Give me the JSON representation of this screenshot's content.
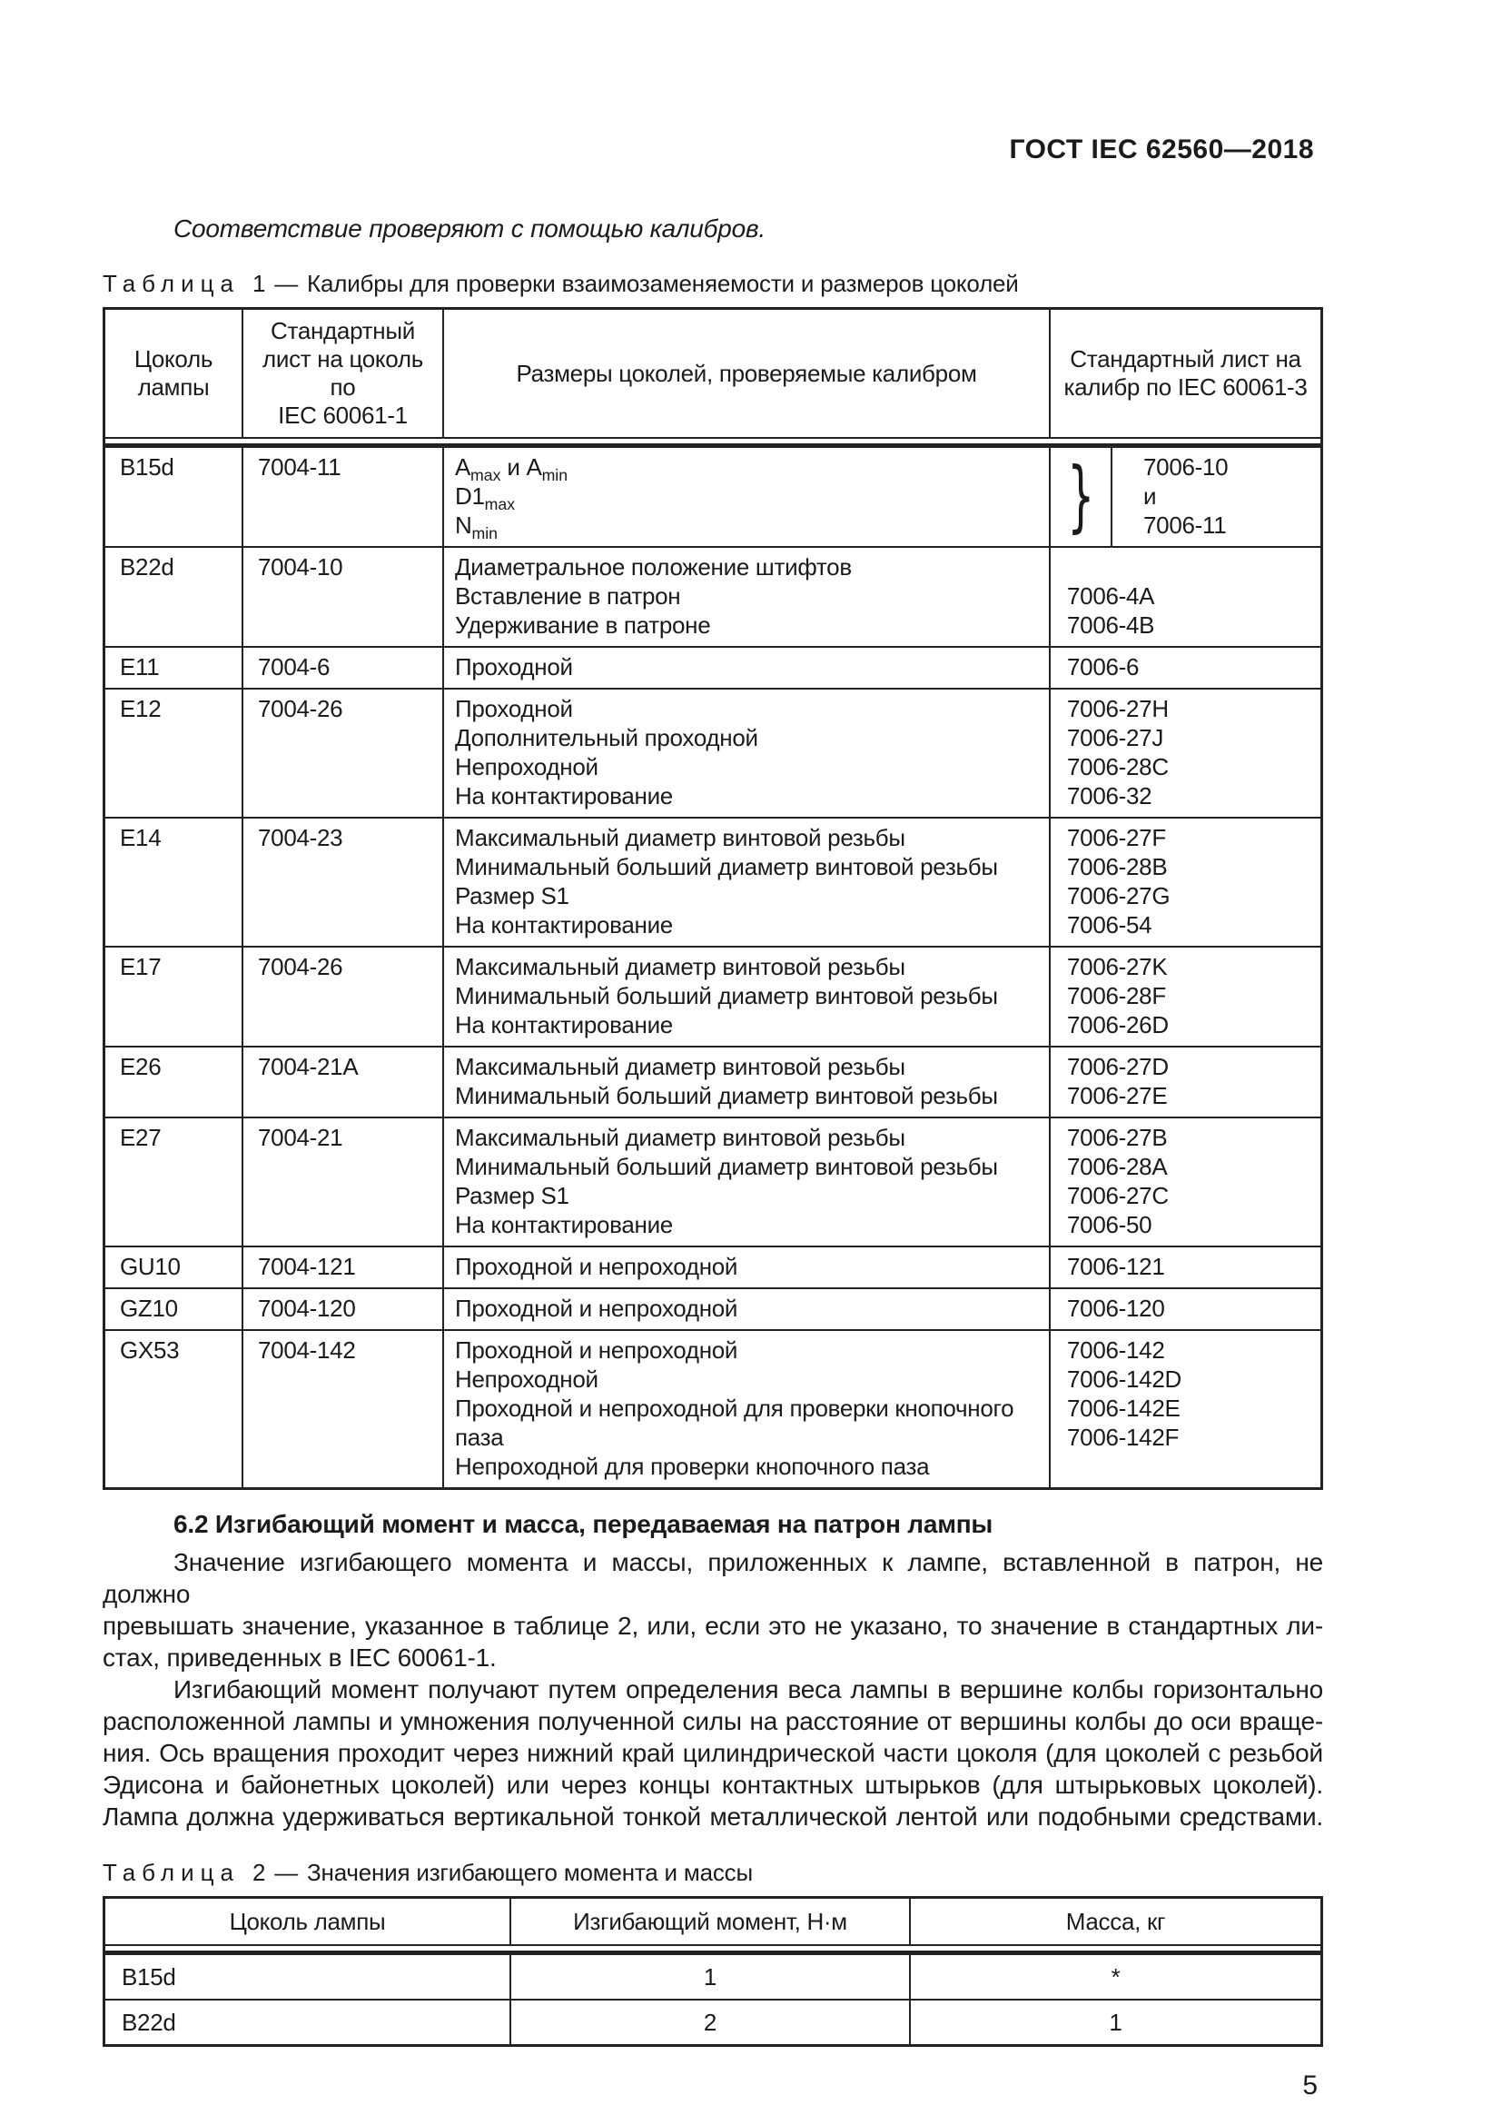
{
  "page": {
    "doc_header": "ГОСТ IEC 62560—2018",
    "intro_italic": "Соответствие проверяют с помощью калибров.",
    "page_number": "5"
  },
  "table1": {
    "caption": {
      "label": "Таблица",
      "number": "1",
      "dash": "—",
      "title": "Калибры для проверки взаимозаменяемости и размеров цоколей"
    },
    "columns": [
      "Цоколь\nлампы",
      "Стандартный\nлист на цоколь по\nIEC 60061-1",
      "Размеры цоколей, проверяемые калибром",
      "Стандартный лист на\nкалибр по IEC 60061-3"
    ],
    "rows": [
      {
        "cap": "B15d",
        "sheet": "7004-11",
        "sizes": [
          "A_{max} и A_{min}",
          "D1_{max}",
          "N_{min}"
        ],
        "gauges": [
          "7006-10",
          "и",
          "7006-11"
        ],
        "brace": true
      },
      {
        "cap": "B22d",
        "sheet": "7004-10",
        "sizes": [
          "Диаметральное положение штифтов",
          "Вставление в патрон",
          "Удерживание в патроне"
        ],
        "gauges": [
          "",
          "7006-4A",
          "7006-4B"
        ]
      },
      {
        "cap": "E11",
        "sheet": "7004-6",
        "sizes": [
          "Проходной"
        ],
        "gauges": [
          "7006-6"
        ]
      },
      {
        "cap": "E12",
        "sheet": "7004-26",
        "sizes": [
          "Проходной",
          "Дополнительный проходной",
          "Непроходной",
          "На контактирование"
        ],
        "gauges": [
          "7006-27H",
          "7006-27J",
          "7006-28C",
          "7006-32"
        ]
      },
      {
        "cap": "E14",
        "sheet": "7004-23",
        "sizes": [
          "Максимальный диаметр винтовой резьбы",
          "Минимальный больший диаметр винтовой резьбы",
          "Размер S1",
          "На контактирование"
        ],
        "gauges": [
          "7006-27F",
          "7006-28B",
          "7006-27G",
          "7006-54"
        ]
      },
      {
        "cap": "E17",
        "sheet": "7004-26",
        "sizes": [
          "Максимальный диаметр винтовой резьбы",
          "Минимальный больший диаметр винтовой резьбы",
          "На контактирование"
        ],
        "gauges": [
          "7006-27K",
          "7006-28F",
          "7006-26D"
        ]
      },
      {
        "cap": "E26",
        "sheet": "7004-21A",
        "sizes": [
          "Максимальный диаметр винтовой резьбы",
          "Минимальный больший диаметр винтовой резьбы"
        ],
        "gauges": [
          "7006-27D",
          "7006-27E"
        ]
      },
      {
        "cap": "E27",
        "sheet": "7004-21",
        "sizes": [
          "Максимальный диаметр винтовой резьбы",
          "Минимальный больший диаметр винтовой резьбы",
          "Размер S1",
          "На контактирование"
        ],
        "gauges": [
          "7006-27B",
          "7006-28A",
          "7006-27C",
          "7006-50"
        ]
      },
      {
        "cap": "GU10",
        "sheet": "7004-121",
        "sizes": [
          "Проходной и непроходной"
        ],
        "gauges": [
          "7006-121"
        ]
      },
      {
        "cap": "GZ10",
        "sheet": "7004-120",
        "sizes": [
          "Проходной и непроходной"
        ],
        "gauges": [
          "7006-120"
        ]
      },
      {
        "cap": "GX53",
        "sheet": "7004-142",
        "sizes": [
          "Проходной и непроходной",
          "Непроходной",
          "Проходной и непроходной для проверки кнопочного паза",
          "Непроходной для проверки кнопочного паза"
        ],
        "gauges": [
          "7006-142",
          "7006-142D",
          "7006-142E",
          "7006-142F"
        ]
      }
    ]
  },
  "section": {
    "heading": "6.2 Изгибающий момент и масса, передаваемая на патрон лампы",
    "paragraphs": [
      {
        "justify_last": false,
        "lines": [
          "Значение изгибающего момента и массы, приложенных к лампе, вставленной в патрон, не должно",
          "превышать значение, указанное в таблице 2, или, если это не указано, то значение в стандартных ли-",
          "стах, приведенных в IEC 60061-1."
        ]
      },
      {
        "justify_last": true,
        "lines": [
          "Изгибающий момент получают путем определения веса лампы в вершине колбы горизонтально",
          "расположенной лампы и умножения полученной силы на расстояние от вершины колбы до оси враще-",
          "ния. Ось вращения проходит через нижний край цилиндрической части цоколя (для цоколей с резьбой",
          "Эдисона и байонетных цоколей) или через концы контактных штырьков (для штырьковых цоколей).",
          "Лампа должна удерживаться вертикальной тонкой металлической лентой или подобными средствами."
        ]
      }
    ]
  },
  "table2": {
    "caption": {
      "label": "Таблица",
      "number": "2",
      "dash": "—",
      "title": "Значения изгибающего момента и массы"
    },
    "columns": [
      "Цоколь лампы",
      "Изгибающий момент, Н·м",
      "Масса, кг"
    ],
    "rows": [
      {
        "cap": "B15d",
        "moment": "1",
        "mass": "*"
      },
      {
        "cap": "B22d",
        "moment": "2",
        "mass": "1"
      }
    ]
  }
}
